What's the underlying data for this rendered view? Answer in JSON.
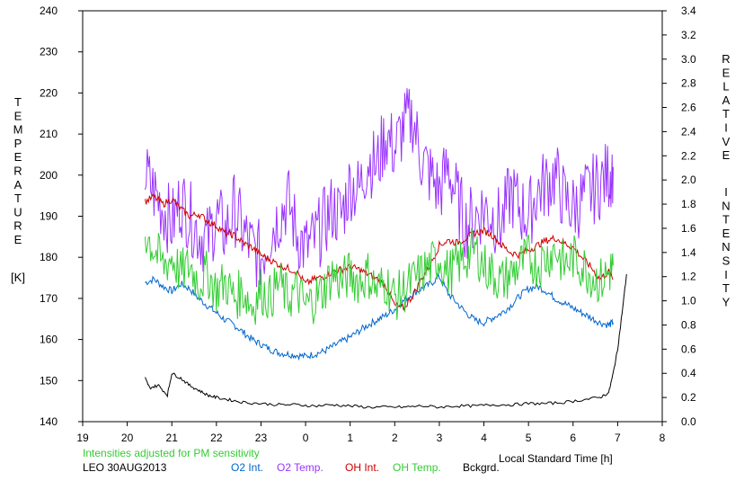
{
  "chart_data": {
    "type": "line",
    "title": "",
    "xlabel": "Local Standard Time [h]",
    "ylabel_left_letters": [
      "T",
      "E",
      "M",
      "P",
      "E",
      "R",
      "A",
      "T",
      "U",
      "R",
      "E"
    ],
    "ylabel_left_unit": "[K]",
    "ylabel_right_word1": [
      "R",
      "E",
      "L",
      "A",
      "T",
      "I",
      "V",
      "E"
    ],
    "ylabel_right_word2": [
      "I",
      "N",
      "T",
      "E",
      "N",
      "S",
      "I",
      "T",
      "Y"
    ],
    "x_hours": [
      19,
      20,
      21,
      22,
      23,
      24,
      25,
      26,
      27,
      28,
      29,
      30,
      31,
      32
    ],
    "x_tick_labels": [
      "19",
      "20",
      "21",
      "22",
      "23",
      "0",
      "1",
      "2",
      "3",
      "4",
      "5",
      "6",
      "7",
      "8"
    ],
    "y_left_range": [
      140,
      240
    ],
    "y_left_ticks": [
      "140",
      "150",
      "160",
      "170",
      "180",
      "190",
      "200",
      "210",
      "220",
      "230",
      "240"
    ],
    "y_right_range": [
      0.0,
      3.4
    ],
    "y_right_ticks": [
      "0.0",
      "0.2",
      "0.4",
      "0.6",
      "0.8",
      "1.0",
      "1.2",
      "1.4",
      "1.6",
      "1.8",
      "2.0",
      "2.2",
      "2.4",
      "2.6",
      "2.8",
      "3.0",
      "3.2",
      "3.4"
    ],
    "note": "Intensities adjusted for PM sensitivity",
    "station": "LEO 30AUG2013",
    "series": [
      {
        "name": "O2 Int.",
        "axis": "right",
        "color": "#0066cc",
        "x": [
          20.4,
          20.6,
          20.8,
          21.0,
          21.2,
          21.4,
          21.6,
          21.8,
          22.0,
          22.2,
          22.4,
          22.6,
          22.8,
          23.0,
          23.2,
          23.4,
          23.6,
          23.8,
          24.0,
          24.2,
          24.4,
          24.6,
          24.8,
          25.0,
          25.2,
          25.4,
          25.6,
          25.8,
          26.0,
          26.2,
          26.4,
          26.6,
          26.8,
          27.0,
          27.2,
          27.4,
          27.6,
          27.8,
          28.0,
          28.2,
          28.4,
          28.6,
          28.8,
          29.0,
          29.2,
          29.4,
          29.6,
          29.8,
          30.0,
          30.2,
          30.4,
          30.6,
          30.8,
          30.9
        ],
        "y": [
          1.15,
          1.18,
          1.12,
          1.08,
          1.14,
          1.1,
          1.02,
          0.96,
          0.9,
          0.84,
          0.8,
          0.74,
          0.68,
          0.64,
          0.6,
          0.57,
          0.56,
          0.55,
          0.54,
          0.56,
          0.58,
          0.62,
          0.66,
          0.7,
          0.75,
          0.8,
          0.84,
          0.88,
          0.93,
          1.0,
          1.06,
          1.1,
          1.14,
          1.2,
          1.06,
          0.98,
          0.9,
          0.84,
          0.82,
          0.86,
          0.9,
          0.96,
          1.04,
          1.1,
          1.12,
          1.08,
          1.02,
          0.98,
          0.94,
          0.9,
          0.86,
          0.82,
          0.8,
          0.82
        ]
      },
      {
        "name": "O2 Temp.",
        "axis": "left",
        "color": "#9933ff",
        "x": [
          20.4,
          20.6,
          20.8,
          21.0,
          21.2,
          21.4,
          21.6,
          21.8,
          22.0,
          22.2,
          22.4,
          22.6,
          22.8,
          23.0,
          23.2,
          23.4,
          23.6,
          23.8,
          24.0,
          24.2,
          24.4,
          24.6,
          24.8,
          25.0,
          25.2,
          25.4,
          25.6,
          25.8,
          26.0,
          26.2,
          26.4,
          26.6,
          26.8,
          27.0,
          27.2,
          27.4,
          27.6,
          27.8,
          28.0,
          28.2,
          28.4,
          28.6,
          28.8,
          29.0,
          29.2,
          29.4,
          29.6,
          29.8,
          30.0,
          30.2,
          30.4,
          30.6,
          30.8,
          30.9
        ],
        "y": [
          200,
          196,
          192,
          188,
          194,
          190,
          186,
          184,
          190,
          186,
          192,
          186,
          182,
          180,
          186,
          190,
          194,
          186,
          182,
          184,
          188,
          192,
          190,
          198,
          196,
          204,
          202,
          210,
          206,
          212,
          214,
          204,
          200,
          196,
          202,
          194,
          188,
          190,
          192,
          190,
          188,
          196,
          192,
          190,
          196,
          198,
          200,
          194,
          192,
          194,
          196,
          198,
          200,
          202
        ]
      },
      {
        "name": "OH Int.",
        "axis": "right",
        "color": "#cc0000",
        "x": [
          20.4,
          20.6,
          20.8,
          21.0,
          21.2,
          21.4,
          21.6,
          21.8,
          22.0,
          22.2,
          22.4,
          22.6,
          22.8,
          23.0,
          23.2,
          23.4,
          23.6,
          23.8,
          24.0,
          24.2,
          24.4,
          24.6,
          24.8,
          25.0,
          25.2,
          25.4,
          25.6,
          25.8,
          26.0,
          26.2,
          26.4,
          26.6,
          26.8,
          27.0,
          27.2,
          27.4,
          27.6,
          27.8,
          28.0,
          28.2,
          28.4,
          28.6,
          28.8,
          29.0,
          29.2,
          29.4,
          29.6,
          29.8,
          30.0,
          30.2,
          30.4,
          30.6,
          30.8,
          30.9
        ],
        "y": [
          1.82,
          1.86,
          1.8,
          1.84,
          1.76,
          1.7,
          1.72,
          1.66,
          1.62,
          1.56,
          1.54,
          1.48,
          1.44,
          1.38,
          1.34,
          1.3,
          1.27,
          1.24,
          1.14,
          1.18,
          1.2,
          1.24,
          1.26,
          1.28,
          1.26,
          1.22,
          1.18,
          1.12,
          0.96,
          0.94,
          1.04,
          1.18,
          1.3,
          1.46,
          1.5,
          1.48,
          1.52,
          1.56,
          1.58,
          1.54,
          1.46,
          1.4,
          1.38,
          1.42,
          1.46,
          1.5,
          1.52,
          1.48,
          1.44,
          1.36,
          1.28,
          1.18,
          1.24,
          1.18
        ]
      },
      {
        "name": "OH Temp.",
        "axis": "left",
        "color": "#33cc33",
        "x": [
          20.4,
          20.6,
          20.8,
          21.0,
          21.2,
          21.4,
          21.6,
          21.8,
          22.0,
          22.2,
          22.4,
          22.6,
          22.8,
          23.0,
          23.2,
          23.4,
          23.6,
          23.8,
          24.0,
          24.2,
          24.4,
          24.6,
          24.8,
          25.0,
          25.2,
          25.4,
          25.6,
          25.8,
          26.0,
          26.2,
          26.4,
          26.6,
          26.8,
          27.0,
          27.2,
          27.4,
          27.6,
          27.8,
          28.0,
          28.2,
          28.4,
          28.6,
          28.8,
          29.0,
          29.2,
          29.4,
          29.6,
          29.8,
          30.0,
          30.2,
          30.4,
          30.6,
          30.8,
          30.9
        ],
        "y": [
          186,
          182,
          178,
          180,
          176,
          178,
          174,
          176,
          172,
          174,
          170,
          172,
          168,
          172,
          170,
          174,
          170,
          172,
          168,
          170,
          172,
          176,
          174,
          176,
          174,
          176,
          172,
          174,
          170,
          172,
          174,
          176,
          178,
          180,
          176,
          178,
          180,
          182,
          178,
          176,
          174,
          176,
          178,
          180,
          178,
          180,
          182,
          178,
          180,
          178,
          176,
          174,
          176,
          178
        ]
      },
      {
        "name": "Bckgrd.",
        "axis": "right",
        "color": "#000000",
        "x": [
          20.4,
          20.5,
          20.7,
          20.9,
          21.0,
          21.2,
          21.4,
          21.6,
          21.8,
          22.0,
          22.3,
          22.6,
          23.0,
          23.4,
          23.8,
          24.2,
          24.6,
          25.0,
          25.4,
          25.8,
          26.2,
          26.6,
          27.0,
          27.4,
          27.8,
          28.2,
          28.6,
          29.0,
          29.4,
          29.8,
          30.2,
          30.6,
          30.8,
          30.9,
          31.0,
          31.1,
          31.2
        ],
        "y": [
          0.36,
          0.28,
          0.3,
          0.22,
          0.4,
          0.36,
          0.3,
          0.26,
          0.22,
          0.2,
          0.18,
          0.16,
          0.15,
          0.14,
          0.14,
          0.13,
          0.14,
          0.13,
          0.12,
          0.12,
          0.12,
          0.13,
          0.12,
          0.13,
          0.13,
          0.14,
          0.14,
          0.15,
          0.15,
          0.16,
          0.18,
          0.2,
          0.24,
          0.4,
          0.6,
          0.9,
          1.22
        ]
      }
    ]
  }
}
